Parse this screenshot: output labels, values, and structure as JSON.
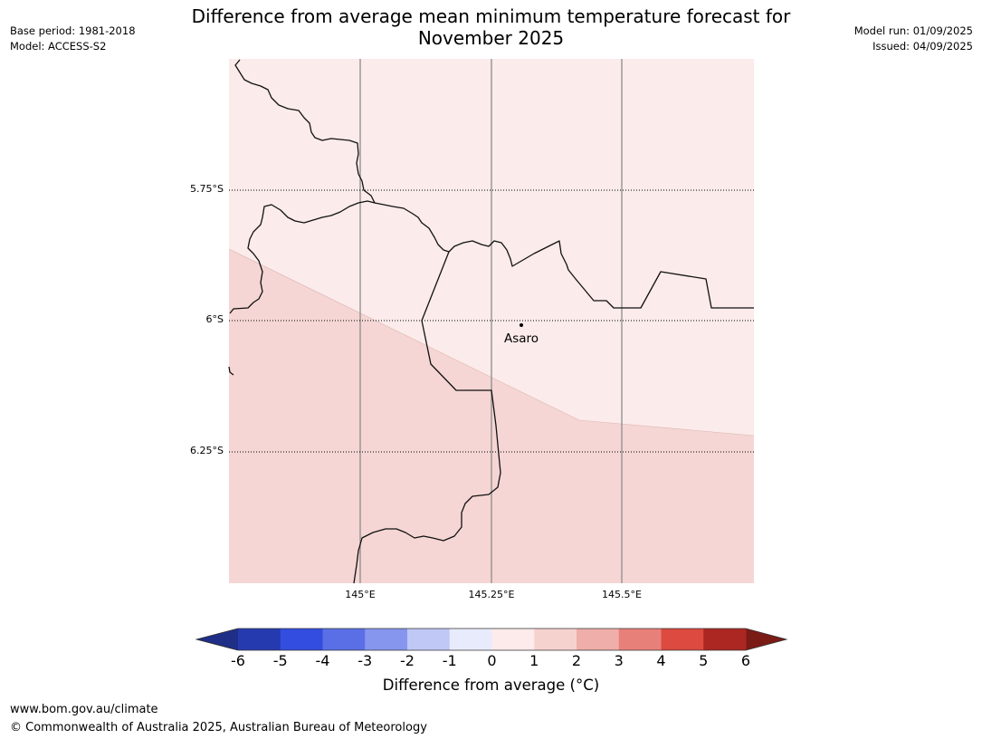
{
  "header": {
    "title_line1": "Difference from average mean minimum temperature forecast for",
    "title_line2": "November 2025",
    "base_period": "Base period: 1981-2018",
    "model": "Model: ACCESS-S2",
    "model_run": "Model run: 01/09/2025",
    "issued": "Issued: 04/09/2025"
  },
  "map": {
    "lat_labels": [
      "5.75°S",
      "6°S",
      "6.25°S"
    ],
    "lon_labels": [
      "145°E",
      "145.25°E",
      "145.5°E"
    ],
    "place_label": "Asaro",
    "region_colors": {
      "light": "#fbebea",
      "darker": "#f5d6d4"
    }
  },
  "colorbar": {
    "ticks": [
      "-6",
      "-5",
      "-4",
      "-3",
      "-2",
      "-1",
      "0",
      "1",
      "2",
      "3",
      "4",
      "5",
      "6"
    ],
    "colors": [
      "#1f2e86",
      "#263ab0",
      "#324ddf",
      "#5a6fe6",
      "#8696ee",
      "#c0c9f5",
      "#e8ebfc",
      "#fcebea",
      "#f6d2cf",
      "#efaea9",
      "#e8807a",
      "#dc4a40",
      "#ac2722",
      "#7a1b16"
    ],
    "label": "Difference from average (°C)"
  },
  "footer": {
    "url": "www.bom.gov.au/climate",
    "copyright": "© Commonwealth of Australia 2025, Australian Bureau of Meteorology"
  }
}
